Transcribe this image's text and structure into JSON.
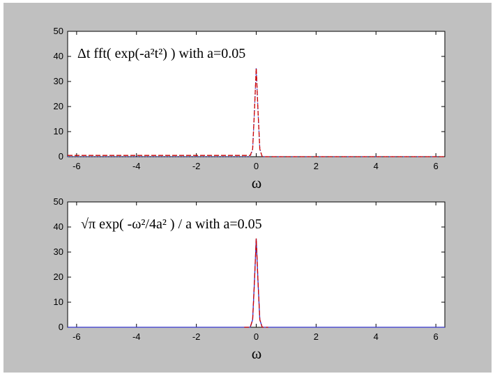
{
  "chart_data": [
    {
      "type": "line",
      "title": "Δt fft( exp(-a²t²) ) with a=0.05",
      "xlabel": "ω",
      "ylabel": "",
      "xlim": [
        -6.3,
        6.3
      ],
      "ylim": [
        0,
        50
      ],
      "xticks": [
        "-6",
        "-4",
        "-2",
        "0",
        "2",
        "4",
        "6"
      ],
      "yticks": [
        "0",
        "10",
        "20",
        "30",
        "40",
        "50"
      ],
      "grid": false,
      "colors": {
        "primary": "#cc0000",
        "secondary": "#3333cc"
      },
      "series": [
        {
          "color": "#3333cc",
          "style": "dotted",
          "x": [
            -6.3,
            -0.2,
            -0.12,
            -0.06,
            0,
            0.06,
            0.12,
            0.2,
            6.3
          ],
          "y": [
            0,
            0,
            3,
            18,
            35.4,
            18,
            3,
            0,
            0
          ]
        },
        {
          "color": "#cc0000",
          "style": "dashed",
          "x": [
            -6.3,
            -0.2,
            -0.12,
            -0.06,
            0,
            0.06,
            0.12,
            0.2,
            6.3
          ],
          "y": [
            0.5,
            0.5,
            3,
            18,
            35.4,
            18,
            3,
            0,
            0
          ]
        }
      ]
    },
    {
      "type": "line",
      "title": "√π exp( -ω²/4a² ) / a   with a=0.05",
      "xlabel": "ω",
      "ylabel": "",
      "xlim": [
        -6.3,
        6.3
      ],
      "ylim": [
        0,
        50
      ],
      "xticks": [
        "-6",
        "-4",
        "-2",
        "0",
        "2",
        "4",
        "6"
      ],
      "yticks": [
        "0",
        "10",
        "20",
        "30",
        "40",
        "50"
      ],
      "grid": false,
      "colors": {
        "primary": "#cc0000",
        "secondary": "#3333cc"
      },
      "series": [
        {
          "color": "#3333cc",
          "style": "solid",
          "x": [
            -6.3,
            -0.2,
            -0.12,
            -0.06,
            0,
            0.06,
            0.12,
            0.2,
            6.3
          ],
          "y": [
            0,
            0,
            3,
            18,
            35.4,
            18,
            3,
            0,
            0
          ]
        },
        {
          "color": "#cc0000",
          "style": "dashed",
          "x": [
            -0.4,
            -0.2,
            -0.12,
            -0.06,
            0,
            0.06,
            0.12,
            0.2,
            0.4
          ],
          "y": [
            0,
            0,
            3,
            18,
            35.4,
            18,
            3,
            0,
            0
          ]
        }
      ]
    }
  ]
}
